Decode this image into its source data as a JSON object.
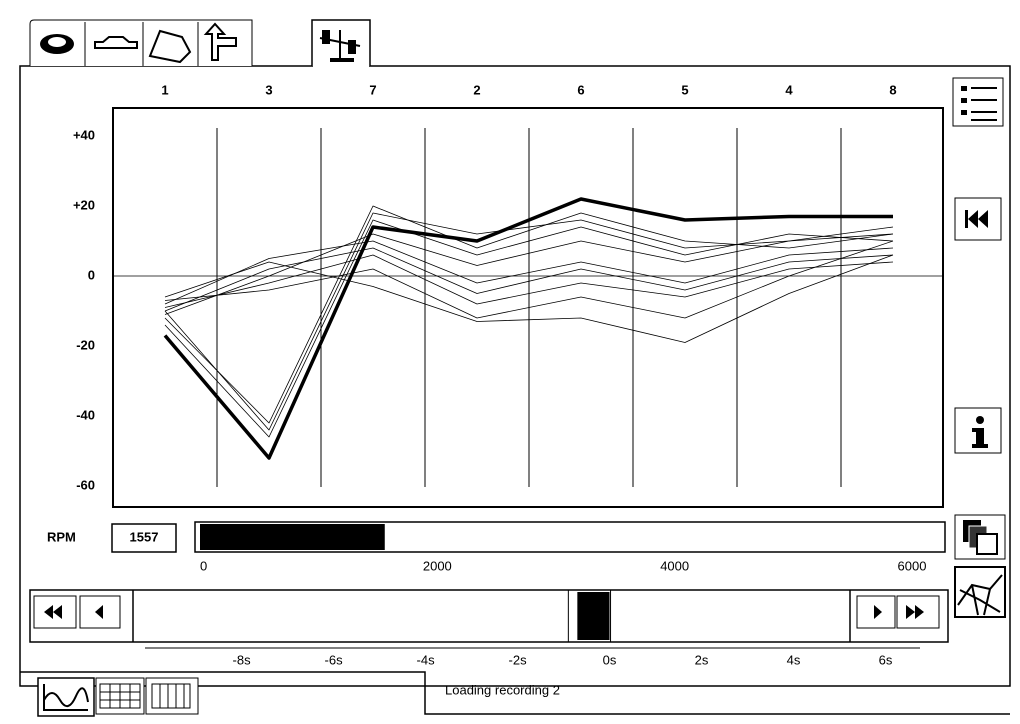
{
  "chart_data": {
    "type": "line",
    "categories": [
      "1",
      "3",
      "7",
      "2",
      "6",
      "5",
      "4",
      "8"
    ],
    "ylim": [
      -66,
      48
    ],
    "yticks": [
      {
        "value": 40,
        "label": "+40"
      },
      {
        "value": 20,
        "label": "+20"
      },
      0,
      -20,
      -40,
      -60
    ],
    "zero_line": true,
    "series": [
      {
        "color": "#000000",
        "line_width": 0.8,
        "values": [
          -10,
          -44,
          18,
          12,
          16,
          8,
          10,
          14
        ]
      },
      {
        "color": "#000000",
        "line_width": 0.8,
        "values": [
          -12,
          -42,
          20,
          8,
          18,
          10,
          8,
          12
        ]
      },
      {
        "color": "#000000",
        "line_width": 0.8,
        "values": [
          -14,
          -46,
          16,
          6,
          14,
          6,
          12,
          10
        ]
      },
      {
        "color": "#000000",
        "line_width": 0.8,
        "values": [
          -8,
          5,
          10,
          -2,
          4,
          -2,
          6,
          8
        ]
      },
      {
        "color": "#000000",
        "line_width": 0.8,
        "values": [
          -10,
          2,
          8,
          -5,
          2,
          -4,
          4,
          6
        ]
      },
      {
        "color": "#000000",
        "line_width": 0.8,
        "values": [
          -9,
          -2,
          6,
          -8,
          -2,
          -6,
          2,
          4
        ]
      },
      {
        "color": "#000000",
        "line_width": 0.8,
        "values": [
          -7,
          -4,
          2,
          -12,
          -6,
          -12,
          0,
          10
        ]
      },
      {
        "color": "#000000",
        "line_width": 0.8,
        "values": [
          -6,
          4,
          -3,
          -13,
          -12,
          -19,
          -5,
          6
        ]
      },
      {
        "color": "#000000",
        "line_width": 0.8,
        "values": [
          -11,
          0,
          12,
          3,
          10,
          4,
          10,
          12
        ]
      },
      {
        "color": "#000000",
        "line_width": 3.5,
        "values": [
          -17,
          -52,
          14,
          10,
          22,
          16,
          17,
          17
        ]
      }
    ]
  },
  "rpm": {
    "label": "RPM",
    "value": 1557,
    "xlim": [
      0,
      6000
    ],
    "xticks": [
      0,
      2000,
      4000,
      6000
    ],
    "color": "#000000"
  },
  "timeline": {
    "xlim": [
      -10.1,
      6.75
    ],
    "xticks": [
      {
        "value": -8,
        "label": "-8s"
      },
      {
        "value": -6,
        "label": "-6s"
      },
      {
        "value": -4,
        "label": "-4s"
      },
      {
        "value": -2,
        "label": "-2s"
      },
      {
        "value": 0,
        "label": "0s"
      },
      {
        "value": 2,
        "label": "2s"
      },
      {
        "value": 4,
        "label": "4s"
      },
      {
        "value": 6,
        "label": "6s"
      }
    ],
    "window": [
      -0.7,
      0
    ]
  },
  "status": "Loading recording 2"
}
